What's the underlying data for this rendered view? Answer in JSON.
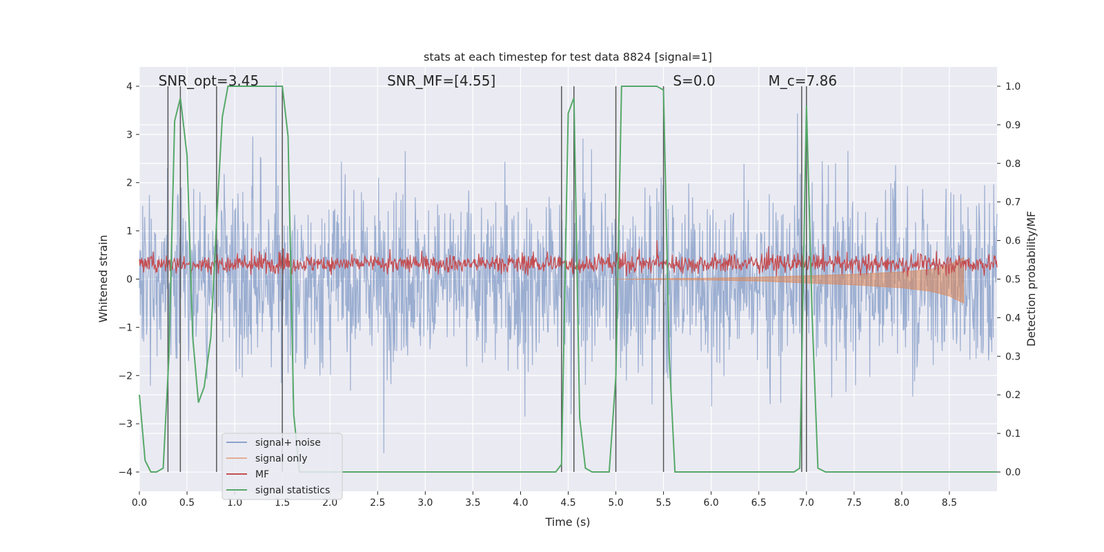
{
  "chart_data": {
    "type": "line",
    "title": "stats at each timestep for test data 8824 [signal=1]",
    "xlabel": "Time (s)",
    "ylabel": "Whitened strain",
    "ylabel_right": "Detection probability/MF",
    "xlim": [
      0.0,
      9.0
    ],
    "ylim": [
      -4.4,
      4.4
    ],
    "ylim_right": [
      -0.05,
      1.05
    ],
    "x_ticks": [
      0.0,
      0.5,
      1.0,
      1.5,
      2.0,
      2.5,
      3.0,
      3.5,
      4.0,
      4.5,
      5.0,
      5.5,
      6.0,
      6.5,
      7.0,
      7.5,
      8.0,
      8.5
    ],
    "x_tick_labels": [
      "0.0",
      "0.5",
      "1.0",
      "1.5",
      "2.0",
      "2.5",
      "3.0",
      "3.5",
      "4.0",
      "4.5",
      "5.0",
      "5.5",
      "6.0",
      "6.5",
      "7.0",
      "7.5",
      "8.0",
      "8.5"
    ],
    "y_ticks": [
      4,
      3,
      2,
      1,
      0,
      -1,
      -2,
      -3,
      -4
    ],
    "y_tick_labels": [
      "4",
      "3",
      "2",
      "1",
      "0",
      "−1",
      "−2",
      "−3",
      "−4"
    ],
    "y_right_ticks": [
      1.0,
      0.9,
      0.8,
      0.7,
      0.6,
      0.5,
      0.4,
      0.3,
      0.2,
      0.1,
      0.0
    ],
    "y_right_tick_labels": [
      "1.0",
      "0.9",
      "0.8",
      "0.7",
      "0.6",
      "0.5",
      "0.4",
      "0.3",
      "0.2",
      "0.1",
      "0.0"
    ],
    "grid": true,
    "legend_position": "lower-left",
    "annotations": [
      {
        "text": "SNR_opt=3.45",
        "x": 0.2
      },
      {
        "text": "SNR_MF=[4.55]",
        "x": 2.6
      },
      {
        "text": "S=0.0",
        "x": 5.6
      },
      {
        "text": "M_c=7.86",
        "x": 6.6
      }
    ],
    "vertical_lines": [
      0.3,
      0.43,
      0.81,
      1.5,
      4.43,
      4.56,
      5.0,
      5.5,
      6.95,
      7.0
    ],
    "series": [
      {
        "name": "signal+ noise",
        "color": "#4c72b0",
        "axis": "left",
        "description": "dense noisy strain, amplitude mostly within ±2, peaks near ±3.5"
      },
      {
        "name": "signal only",
        "color": "#dd8452",
        "axis": "left",
        "x": [
          5.0,
          5.5,
          6.0,
          6.5,
          7.0,
          7.5,
          8.0,
          8.3,
          8.5,
          8.65
        ],
        "upper": [
          0.0,
          0.01,
          0.02,
          0.04,
          0.07,
          0.1,
          0.15,
          0.2,
          0.3,
          0.45
        ],
        "lower": [
          0.0,
          -0.01,
          -0.02,
          -0.04,
          -0.08,
          -0.12,
          -0.18,
          -0.25,
          -0.35,
          -0.5
        ]
      },
      {
        "name": "MF",
        "color": "#c44e52",
        "axis": "left",
        "description": "noisy band around +0.3, range approx 0.0 to 0.8"
      },
      {
        "name": "signal statistics",
        "color": "#55a868",
        "axis": "right",
        "x": [
          0.0,
          0.06,
          0.12,
          0.18,
          0.25,
          0.31,
          0.37,
          0.43,
          0.5,
          0.56,
          0.62,
          0.68,
          0.75,
          0.81,
          0.87,
          0.93,
          1.0,
          1.06,
          1.12,
          1.5,
          1.56,
          1.62,
          1.68,
          1.75,
          2.0,
          3.0,
          4.0,
          4.37,
          4.43,
          4.5,
          4.56,
          4.62,
          4.68,
          4.75,
          4.87,
          4.93,
          5.0,
          5.06,
          5.12,
          5.43,
          5.5,
          5.56,
          5.62,
          5.7,
          6.0,
          6.5,
          6.87,
          6.93,
          7.0,
          7.06,
          7.12,
          7.2,
          7.5,
          8.0,
          8.5,
          9.0
        ],
        "y": [
          0.2,
          0.03,
          0.0,
          0.0,
          0.01,
          0.3,
          0.91,
          0.97,
          0.82,
          0.35,
          0.18,
          0.22,
          0.35,
          0.65,
          0.92,
          1.0,
          1.0,
          1.0,
          1.0,
          1.0,
          0.87,
          0.15,
          0.0,
          0.0,
          0.0,
          0.0,
          0.0,
          0.0,
          0.02,
          0.93,
          0.97,
          0.14,
          0.01,
          0.0,
          0.0,
          0.0,
          0.25,
          1.0,
          1.0,
          1.0,
          0.99,
          0.3,
          0.0,
          0.0,
          0.0,
          0.0,
          0.0,
          0.01,
          0.95,
          0.4,
          0.01,
          0.0,
          0.0,
          0.0,
          0.0,
          0.0
        ]
      }
    ]
  }
}
